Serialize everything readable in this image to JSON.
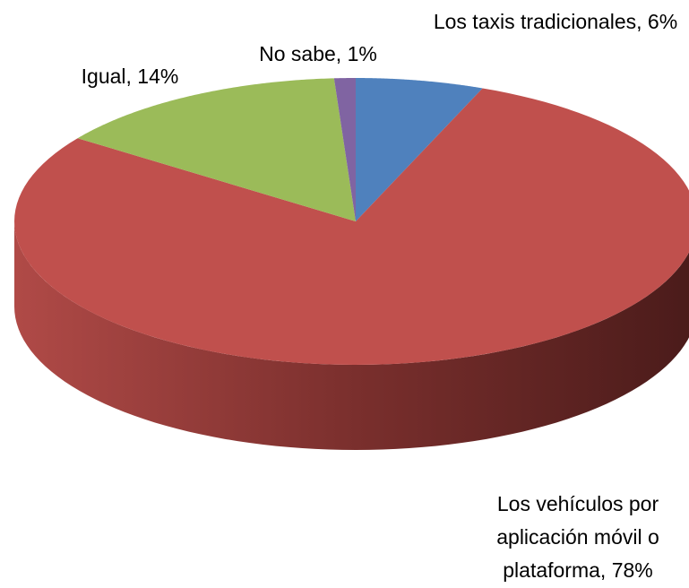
{
  "chart_data": {
    "type": "pie3d",
    "categories": [
      "Los taxis tradicionales,",
      "Los vehículos por aplicación móvil o plataforma,",
      "Igual,",
      "No sabe,"
    ],
    "values": [
      6,
      78,
      14,
      1
    ],
    "value_labels": [
      "6%",
      "78%",
      "14%",
      "1%"
    ],
    "colors": [
      "#4f81bd",
      "#c0504d",
      "#9bbb59",
      "#8064a2"
    ]
  }
}
